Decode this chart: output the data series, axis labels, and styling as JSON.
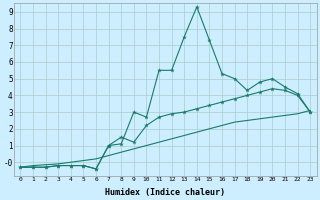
{
  "xlabel": "Humidex (Indice chaleur)",
  "background_color": "#cceeff",
  "grid_color": "#aacccc",
  "line_color": "#1a7a6a",
  "x_values": [
    0,
    1,
    2,
    3,
    4,
    5,
    6,
    7,
    8,
    9,
    10,
    11,
    12,
    13,
    14,
    15,
    16,
    17,
    18,
    19,
    20,
    21,
    22,
    23
  ],
  "line1": [
    -0.3,
    -0.3,
    -0.3,
    -0.2,
    -0.2,
    -0.2,
    -0.4,
    1.0,
    1.1,
    3.0,
    2.7,
    5.5,
    5.5,
    7.5,
    9.3,
    7.3,
    5.3,
    5.0,
    4.3,
    4.8,
    5.0,
    4.5,
    4.1,
    3.0
  ],
  "line2": [
    -0.3,
    -0.3,
    -0.3,
    -0.2,
    -0.2,
    -0.2,
    -0.4,
    1.0,
    1.5,
    1.2,
    2.2,
    2.7,
    2.9,
    3.0,
    3.2,
    3.4,
    3.6,
    3.8,
    4.0,
    4.2,
    4.4,
    4.3,
    4.0,
    3.0
  ],
  "line3": [
    -0.3,
    -0.2,
    -0.15,
    -0.1,
    0.0,
    0.1,
    0.2,
    0.4,
    0.6,
    0.8,
    1.0,
    1.2,
    1.4,
    1.6,
    1.8,
    2.0,
    2.2,
    2.4,
    2.5,
    2.6,
    2.7,
    2.8,
    2.9,
    3.1
  ],
  "ylim": [
    -0.8,
    9.5
  ],
  "xlim": [
    -0.5,
    23.5
  ],
  "yticks": [
    0,
    1,
    2,
    3,
    4,
    5,
    6,
    7,
    8,
    9
  ],
  "ytick_labels": [
    "-0",
    "1",
    "2",
    "3",
    "4",
    "5",
    "6",
    "7",
    "8",
    "9"
  ],
  "xticks": [
    0,
    1,
    2,
    3,
    4,
    5,
    6,
    7,
    8,
    9,
    10,
    11,
    12,
    13,
    14,
    15,
    16,
    17,
    18,
    19,
    20,
    21,
    22,
    23
  ]
}
